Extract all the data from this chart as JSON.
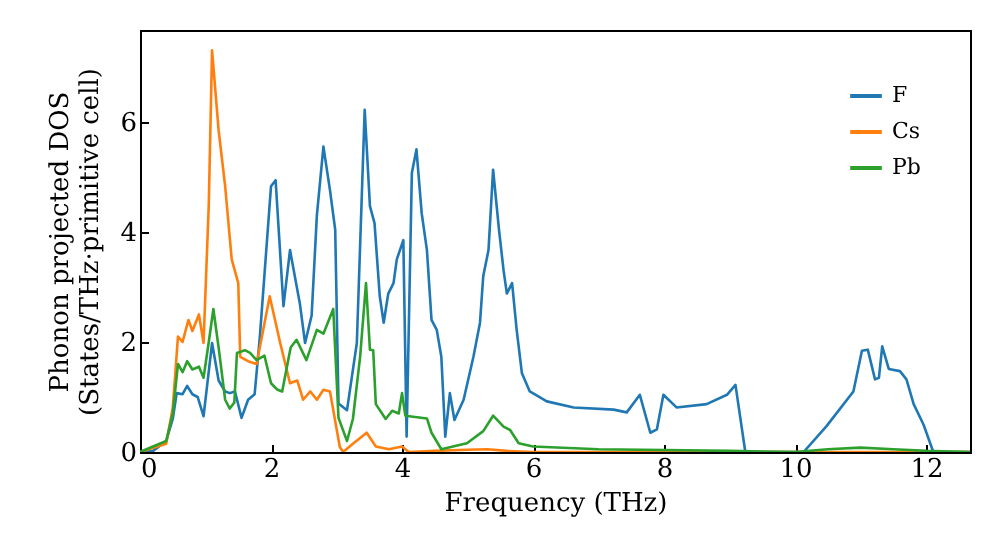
{
  "chart_data": {
    "type": "line",
    "xlabel": "Frequency (THz)",
    "ylabel": "Phonon projected DOS\n(States/THz·primitive cell)",
    "xlim": [
      0,
      12.67
    ],
    "ylim": [
      0,
      7.67
    ],
    "xticks": [
      0,
      2,
      4,
      6,
      8,
      10,
      12
    ],
    "yticks": [
      0,
      2,
      4,
      6
    ],
    "grid": false,
    "legend": "top right",
    "line_style": "solid",
    "marker": "none",
    "series": [
      {
        "name": "F",
        "color": "#1f77b4",
        "x": [
          0,
          0.2,
          0.4,
          0.5,
          0.56,
          0.65,
          0.72,
          0.8,
          0.88,
          0.97,
          1.1,
          1.2,
          1.3,
          1.37,
          1.45,
          1.55,
          1.65,
          1.75,
          1.83,
          2.0,
          2.07,
          2.19,
          2.29,
          2.44,
          2.52,
          2.62,
          2.7,
          2.8,
          2.9,
          2.98,
          3.03,
          3.16,
          3.31,
          3.43,
          3.51,
          3.58,
          3.66,
          3.72,
          3.79,
          3.87,
          3.92,
          4.02,
          4.07,
          4.15,
          4.22,
          4.3,
          4.38,
          4.45,
          4.53,
          4.6,
          4.66,
          4.73,
          4.8,
          4.94,
          5.09,
          5.19,
          5.24,
          5.32,
          5.39,
          5.48,
          5.55,
          5.6,
          5.68,
          5.75,
          5.83,
          5.95,
          6.21,
          6.62,
          7.23,
          7.43,
          7.63,
          7.79,
          7.89,
          7.99,
          8.19,
          8.65,
          8.96,
          9.09,
          9.24,
          10.13,
          10.48,
          10.89,
          11.02,
          11.11,
          11.22,
          11.28,
          11.33,
          11.43,
          11.6,
          11.7,
          11.81,
          11.96,
          12.11,
          12.67
        ],
        "values": [
          0,
          0.02,
          0.2,
          0.6,
          1.07,
          1.05,
          1.2,
          1.05,
          1.0,
          0.65,
          1.98,
          1.3,
          1.1,
          1.07,
          1.1,
          0.62,
          0.95,
          1.05,
          2.1,
          4.83,
          4.94,
          2.65,
          3.67,
          2.7,
          1.98,
          2.48,
          4.3,
          5.55,
          4.76,
          4.04,
          0.88,
          0.76,
          1.98,
          6.22,
          4.47,
          4.16,
          2.83,
          2.35,
          2.88,
          3.07,
          3.5,
          3.85,
          0.28,
          5.07,
          5.5,
          4.34,
          3.67,
          2.4,
          2.22,
          1.73,
          0.28,
          1.07,
          0.58,
          0.95,
          1.73,
          2.35,
          3.2,
          3.67,
          5.13,
          4.04,
          3.3,
          2.88,
          3.07,
          2.22,
          1.43,
          1.1,
          0.92,
          0.81,
          0.77,
          0.72,
          1.04,
          0.35,
          0.41,
          1.04,
          0.81,
          0.87,
          1.04,
          1.22,
          0,
          0,
          0.47,
          1.1,
          1.84,
          1.86,
          1.32,
          1.35,
          1.92,
          1.51,
          1.47,
          1.32,
          0.87,
          0.5,
          0,
          0
        ]
      },
      {
        "name": "Cs",
        "color": "#ff7f0e",
        "x": [
          0,
          0.4,
          0.5,
          0.58,
          0.65,
          0.74,
          0.8,
          0.9,
          0.97,
          1.05,
          1.1,
          1.2,
          1.3,
          1.4,
          1.5,
          1.53,
          1.65,
          1.78,
          1.98,
          2.14,
          2.29,
          2.4,
          2.49,
          2.6,
          2.7,
          2.8,
          2.9,
          3.05,
          3.1,
          3.25,
          3.46,
          3.6,
          3.8,
          4.0,
          4.1,
          4.5,
          5.0,
          5.3,
          5.6,
          6.0,
          12.67
        ],
        "values": [
          0,
          0.15,
          0.8,
          2.1,
          2.0,
          2.4,
          2.2,
          2.5,
          1.98,
          4.5,
          7.3,
          5.85,
          4.83,
          3.5,
          3.07,
          1.73,
          1.65,
          1.6,
          2.83,
          1.98,
          1.25,
          1.3,
          0.95,
          1.1,
          0.95,
          1.13,
          1.1,
          0.09,
          0,
          0.15,
          0.35,
          0.1,
          0.05,
          0.1,
          0,
          0.02,
          0.04,
          0.05,
          0.02,
          0,
          0
        ]
      },
      {
        "name": "Pb",
        "color": "#2ca02c",
        "x": [
          0,
          0.4,
          0.5,
          0.58,
          0.65,
          0.72,
          0.8,
          0.9,
          0.97,
          1.05,
          1.12,
          1.2,
          1.3,
          1.37,
          1.44,
          1.48,
          1.6,
          1.68,
          1.78,
          1.9,
          2.0,
          2.1,
          2.17,
          2.3,
          2.39,
          2.54,
          2.7,
          2.8,
          2.95,
          3.03,
          3.16,
          3.25,
          3.36,
          3.45,
          3.51,
          3.56,
          3.6,
          3.75,
          3.85,
          3.95,
          4.0,
          4.05,
          4.38,
          4.45,
          4.6,
          4.99,
          5.24,
          5.39,
          5.55,
          5.65,
          5.78,
          6.0,
          7.0,
          9.0,
          10.0,
          10.5,
          11.0,
          11.5,
          12.0,
          12.67
        ],
        "values": [
          0,
          0.2,
          0.7,
          1.6,
          1.45,
          1.65,
          1.5,
          1.55,
          1.35,
          2.0,
          2.6,
          1.9,
          0.95,
          0.79,
          0.9,
          1.8,
          1.85,
          1.8,
          1.67,
          1.75,
          1.25,
          1.13,
          1.1,
          1.9,
          2.04,
          1.67,
          2.22,
          2.15,
          2.6,
          0.62,
          0.2,
          0.6,
          1.73,
          3.07,
          1.86,
          1.85,
          0.87,
          0.6,
          0.75,
          0.7,
          1.07,
          0.66,
          0.61,
          0.35,
          0.05,
          0.16,
          0.38,
          0.66,
          0.46,
          0.4,
          0.16,
          0.1,
          0.05,
          0.02,
          0,
          0.05,
          0.08,
          0.05,
          0.02,
          0
        ]
      }
    ]
  }
}
